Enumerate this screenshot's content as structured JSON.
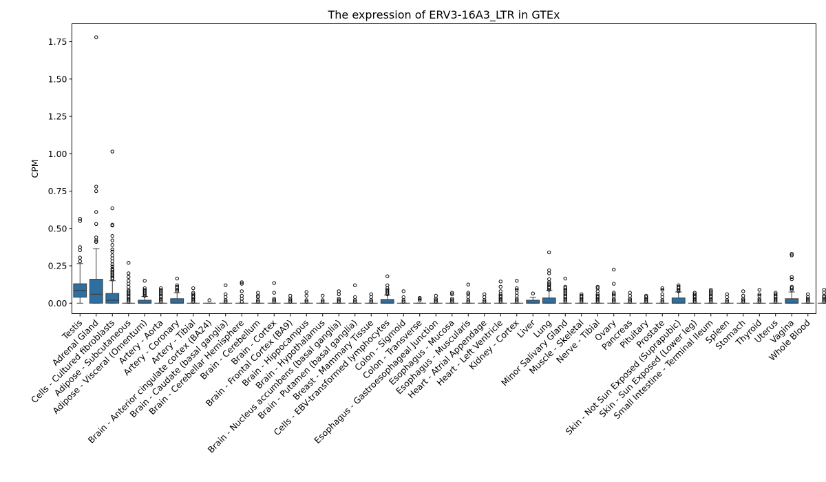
{
  "chart_data": {
    "type": "box",
    "title": "The expression of ERV3-16A3_LTR in GTEx",
    "xlabel": "",
    "ylabel": "CPM",
    "ylim": [
      -0.07,
      1.87
    ],
    "yticks": [
      0.0,
      0.25,
      0.5,
      0.75,
      1.0,
      1.25,
      1.5,
      1.75
    ],
    "ytick_labels": [
      "0.00",
      "0.25",
      "0.50",
      "0.75",
      "1.00",
      "1.25",
      "1.50",
      "1.75"
    ],
    "box_color": "#2f6f9f",
    "grid": false,
    "legend": "none",
    "categories": [
      "Testis",
      "Adrenal Gland",
      "Cells - Cultured fibroblasts",
      "Adipose - Subcutaneous",
      "Adipose - Visceral (Omentum)",
      "Artery - Aorta",
      "Artery - Coronary",
      "Artery - Tibial",
      "Brain - Anterior cingulate cortex (BA24)",
      "Brain - Caudate (basal ganglia)",
      "Brain - Cerebellar Hemisphere",
      "Brain - Cerebellum",
      "Brain - Cortex",
      "Brain - Frontal Cortex (BA9)",
      "Brain - Hippocampus",
      "Brain - Hypothalamus",
      "Brain - Nucleus accumbens (basal ganglia)",
      "Brain - Putamen (basal ganglia)",
      "Breast - Mammary Tissue",
      "Cells - EBV-transformed lymphocytes",
      "Colon - Sigmoid",
      "Colon - Transverse",
      "Esophagus - Gastroesophageal Junction",
      "Esophagus - Mucosa",
      "Esophagus - Muscularis",
      "Heart - Atrial Appendage",
      "Heart - Left Ventricle",
      "Kidney - Cortex",
      "Liver",
      "Lung",
      "Minor Salivary Gland",
      "Muscle - Skeletal",
      "Nerve - Tibial",
      "Ovary",
      "Pancreas",
      "Pituitary",
      "Prostate",
      "Skin - Not Sun Exposed (Suprapubic)",
      "Skin - Sun Exposed (Lower leg)",
      "Small Intestine - Terminal Ileum",
      "Spleen",
      "Stomach",
      "Thyroid",
      "Uterus",
      "Vagina",
      "Whole Blood"
    ],
    "boxes": [
      {
        "q1": 0.04,
        "median": 0.085,
        "q3": 0.13,
        "whislo": 0.0,
        "whishi": 0.265,
        "fliers": [
          0.28,
          0.305,
          0.355,
          0.375,
          0.55,
          0.565
        ]
      },
      {
        "q1": 0.0,
        "median": 0.06,
        "q3": 0.16,
        "whislo": 0.0,
        "whishi": 0.365,
        "fliers": [
          0.41,
          0.42,
          0.44,
          0.53,
          0.61,
          0.75,
          0.78,
          1.78
        ]
      },
      {
        "q1": 0.0,
        "median": 0.02,
        "q3": 0.065,
        "whislo": 0.0,
        "whishi": 0.15,
        "fliers": [
          0.16,
          0.17,
          0.18,
          0.19,
          0.2,
          0.21,
          0.22,
          0.23,
          0.245,
          0.26,
          0.28,
          0.3,
          0.32,
          0.345,
          0.36,
          0.39,
          0.42,
          0.45,
          0.52,
          0.525,
          0.635,
          1.015
        ]
      },
      {
        "q1": 0.0,
        "median": 0.0,
        "q3": 0.0,
        "whislo": 0.0,
        "whishi": 0.0,
        "fliers": [
          0.01,
          0.02,
          0.03,
          0.04,
          0.05,
          0.06,
          0.07,
          0.08,
          0.09,
          0.11,
          0.13,
          0.15,
          0.175,
          0.2,
          0.27
        ]
      },
      {
        "q1": 0.0,
        "median": 0.0,
        "q3": 0.02,
        "whislo": 0.0,
        "whishi": 0.045,
        "fliers": [
          0.05,
          0.06,
          0.07,
          0.08,
          0.09,
          0.1,
          0.15
        ]
      },
      {
        "q1": 0.0,
        "median": 0.0,
        "q3": 0.0,
        "whislo": 0.0,
        "whishi": 0.0,
        "fliers": [
          0.01,
          0.02,
          0.03,
          0.04,
          0.05,
          0.06,
          0.07,
          0.08,
          0.09,
          0.1
        ]
      },
      {
        "q1": 0.0,
        "median": 0.0,
        "q3": 0.03,
        "whislo": 0.0,
        "whishi": 0.07,
        "fliers": [
          0.08,
          0.09,
          0.1,
          0.11,
          0.12,
          0.165
        ]
      },
      {
        "q1": 0.0,
        "median": 0.0,
        "q3": 0.0,
        "whislo": 0.0,
        "whishi": 0.0,
        "fliers": [
          0.01,
          0.02,
          0.03,
          0.04,
          0.05,
          0.06,
          0.07,
          0.1
        ]
      },
      {
        "q1": 0.0,
        "median": 0.0,
        "q3": 0.0,
        "whislo": 0.0,
        "whishi": 0.0,
        "fliers": [
          0.02
        ]
      },
      {
        "q1": 0.0,
        "median": 0.0,
        "q3": 0.0,
        "whislo": 0.0,
        "whishi": 0.0,
        "fliers": [
          0.01,
          0.02,
          0.04,
          0.06,
          0.12
        ]
      },
      {
        "q1": 0.0,
        "median": 0.0,
        "q3": 0.0,
        "whislo": 0.0,
        "whishi": 0.0,
        "fliers": [
          0.01,
          0.03,
          0.05,
          0.08,
          0.13,
          0.14
        ]
      },
      {
        "q1": 0.0,
        "median": 0.0,
        "q3": 0.0,
        "whislo": 0.0,
        "whishi": 0.0,
        "fliers": [
          0.01,
          0.02,
          0.04,
          0.05,
          0.07
        ]
      },
      {
        "q1": 0.0,
        "median": 0.0,
        "q3": 0.0,
        "whislo": 0.0,
        "whishi": 0.0,
        "fliers": [
          0.01,
          0.02,
          0.03,
          0.07,
          0.135
        ]
      },
      {
        "q1": 0.0,
        "median": 0.0,
        "q3": 0.0,
        "whislo": 0.0,
        "whishi": 0.0,
        "fliers": [
          0.01,
          0.02,
          0.03,
          0.05
        ]
      },
      {
        "q1": 0.0,
        "median": 0.0,
        "q3": 0.0,
        "whislo": 0.0,
        "whishi": 0.0,
        "fliers": [
          0.01,
          0.02,
          0.05,
          0.075
        ]
      },
      {
        "q1": 0.0,
        "median": 0.0,
        "q3": 0.0,
        "whislo": 0.0,
        "whishi": 0.0,
        "fliers": [
          0.01,
          0.02,
          0.05
        ]
      },
      {
        "q1": 0.0,
        "median": 0.0,
        "q3": 0.0,
        "whislo": 0.0,
        "whishi": 0.0,
        "fliers": [
          0.01,
          0.02,
          0.03,
          0.06,
          0.08
        ]
      },
      {
        "q1": 0.0,
        "median": 0.0,
        "q3": 0.0,
        "whislo": 0.0,
        "whishi": 0.0,
        "fliers": [
          0.01,
          0.02,
          0.04,
          0.12
        ]
      },
      {
        "q1": 0.0,
        "median": 0.0,
        "q3": 0.0,
        "whislo": 0.0,
        "whishi": 0.0,
        "fliers": [
          0.01,
          0.02,
          0.04,
          0.06
        ]
      },
      {
        "q1": 0.0,
        "median": 0.0,
        "q3": 0.025,
        "whislo": 0.0,
        "whishi": 0.055,
        "fliers": [
          0.06,
          0.07,
          0.08,
          0.09,
          0.1,
          0.12,
          0.18
        ]
      },
      {
        "q1": 0.0,
        "median": 0.0,
        "q3": 0.0,
        "whislo": 0.0,
        "whishi": 0.0,
        "fliers": [
          0.01,
          0.02,
          0.04,
          0.08
        ]
      },
      {
        "q1": 0.0,
        "median": 0.0,
        "q3": 0.0,
        "whislo": 0.0,
        "whishi": 0.0,
        "fliers": [
          0.02,
          0.03,
          0.035
        ]
      },
      {
        "q1": 0.0,
        "median": 0.0,
        "q3": 0.0,
        "whislo": 0.0,
        "whishi": 0.0,
        "fliers": [
          0.01,
          0.02,
          0.03,
          0.05
        ]
      },
      {
        "q1": 0.0,
        "median": 0.0,
        "q3": 0.0,
        "whislo": 0.0,
        "whishi": 0.0,
        "fliers": [
          0.01,
          0.02,
          0.03,
          0.06,
          0.07
        ]
      },
      {
        "q1": 0.0,
        "median": 0.0,
        "q3": 0.0,
        "whislo": 0.0,
        "whishi": 0.0,
        "fliers": [
          0.01,
          0.02,
          0.04,
          0.06,
          0.07,
          0.125
        ]
      },
      {
        "q1": 0.0,
        "median": 0.0,
        "q3": 0.0,
        "whislo": 0.0,
        "whishi": 0.0,
        "fliers": [
          0.01,
          0.02,
          0.04,
          0.06
        ]
      },
      {
        "q1": 0.0,
        "median": 0.0,
        "q3": 0.0,
        "whislo": 0.0,
        "whishi": 0.0,
        "fliers": [
          0.01,
          0.02,
          0.03,
          0.04,
          0.05,
          0.06,
          0.08,
          0.11,
          0.145
        ]
      },
      {
        "q1": 0.0,
        "median": 0.0,
        "q3": 0.0,
        "whislo": 0.0,
        "whishi": 0.0,
        "fliers": [
          0.01,
          0.02,
          0.03,
          0.05,
          0.07,
          0.09,
          0.1,
          0.15
        ]
      },
      {
        "q1": 0.0,
        "median": 0.0,
        "q3": 0.02,
        "whislo": 0.0,
        "whishi": 0.04,
        "fliers": [
          0.065
        ]
      },
      {
        "q1": 0.0,
        "median": 0.0,
        "q3": 0.035,
        "whislo": 0.0,
        "whishi": 0.085,
        "fliers": [
          0.09,
          0.1,
          0.11,
          0.12,
          0.13,
          0.14,
          0.16,
          0.2,
          0.22,
          0.34
        ]
      },
      {
        "q1": 0.0,
        "median": 0.0,
        "q3": 0.0,
        "whislo": 0.0,
        "whishi": 0.0,
        "fliers": [
          0.01,
          0.02,
          0.03,
          0.04,
          0.05,
          0.06,
          0.07,
          0.08,
          0.09,
          0.1,
          0.11,
          0.165
        ]
      },
      {
        "q1": 0.0,
        "median": 0.0,
        "q3": 0.0,
        "whislo": 0.0,
        "whishi": 0.0,
        "fliers": [
          0.01,
          0.02,
          0.03,
          0.04,
          0.05,
          0.06
        ]
      },
      {
        "q1": 0.0,
        "median": 0.0,
        "q3": 0.0,
        "whislo": 0.0,
        "whishi": 0.0,
        "fliers": [
          0.01,
          0.02,
          0.03,
          0.04,
          0.05,
          0.06,
          0.08,
          0.1,
          0.11
        ]
      },
      {
        "q1": 0.0,
        "median": 0.0,
        "q3": 0.0,
        "whislo": 0.0,
        "whishi": 0.0,
        "fliers": [
          0.01,
          0.02,
          0.03,
          0.05,
          0.06,
          0.07,
          0.13,
          0.225
        ]
      },
      {
        "q1": 0.0,
        "median": 0.0,
        "q3": 0.0,
        "whislo": 0.0,
        "whishi": 0.0,
        "fliers": [
          0.01,
          0.02,
          0.03,
          0.05,
          0.07
        ]
      },
      {
        "q1": 0.0,
        "median": 0.0,
        "q3": 0.0,
        "whislo": 0.0,
        "whishi": 0.0,
        "fliers": [
          0.01,
          0.02,
          0.03,
          0.04,
          0.05
        ]
      },
      {
        "q1": 0.0,
        "median": 0.0,
        "q3": 0.0,
        "whislo": 0.0,
        "whishi": 0.0,
        "fliers": [
          0.01,
          0.02,
          0.04,
          0.06,
          0.09,
          0.1
        ]
      },
      {
        "q1": 0.0,
        "median": 0.0,
        "q3": 0.035,
        "whislo": 0.0,
        "whishi": 0.075,
        "fliers": [
          0.08,
          0.09,
          0.1,
          0.11,
          0.12
        ]
      },
      {
        "q1": 0.0,
        "median": 0.0,
        "q3": 0.0,
        "whislo": 0.0,
        "whishi": 0.0,
        "fliers": [
          0.01,
          0.02,
          0.03,
          0.04,
          0.05,
          0.06,
          0.07
        ]
      },
      {
        "q1": 0.0,
        "median": 0.0,
        "q3": 0.0,
        "whislo": 0.0,
        "whishi": 0.0,
        "fliers": [
          0.01,
          0.02,
          0.03,
          0.04,
          0.05,
          0.06,
          0.07,
          0.08,
          0.09
        ]
      },
      {
        "q1": 0.0,
        "median": 0.0,
        "q3": 0.0,
        "whislo": 0.0,
        "whishi": 0.0,
        "fliers": [
          0.01,
          0.02,
          0.04,
          0.06
        ]
      },
      {
        "q1": 0.0,
        "median": 0.0,
        "q3": 0.0,
        "whislo": 0.0,
        "whishi": 0.0,
        "fliers": [
          0.01,
          0.02,
          0.03,
          0.05,
          0.08
        ]
      },
      {
        "q1": 0.0,
        "median": 0.0,
        "q3": 0.0,
        "whislo": 0.0,
        "whishi": 0.0,
        "fliers": [
          0.01,
          0.02,
          0.03,
          0.05,
          0.06,
          0.09
        ]
      },
      {
        "q1": 0.0,
        "median": 0.0,
        "q3": 0.0,
        "whislo": 0.0,
        "whishi": 0.0,
        "fliers": [
          0.01,
          0.02,
          0.03,
          0.04,
          0.05,
          0.06,
          0.07
        ]
      },
      {
        "q1": 0.0,
        "median": 0.0,
        "q3": 0.03,
        "whislo": 0.0,
        "whishi": 0.075,
        "fliers": [
          0.09,
          0.1,
          0.11,
          0.16,
          0.175,
          0.32,
          0.33
        ]
      },
      {
        "q1": 0.0,
        "median": 0.0,
        "q3": 0.0,
        "whislo": 0.0,
        "whishi": 0.0,
        "fliers": [
          0.01,
          0.02,
          0.03,
          0.04,
          0.06
        ]
      },
      {
        "q1": 0.0,
        "median": 0.0,
        "q3": 0.0,
        "whislo": 0.0,
        "whishi": 0.0,
        "fliers": [
          0.01,
          0.02,
          0.03,
          0.04,
          0.05,
          0.07,
          0.09
        ]
      }
    ]
  }
}
